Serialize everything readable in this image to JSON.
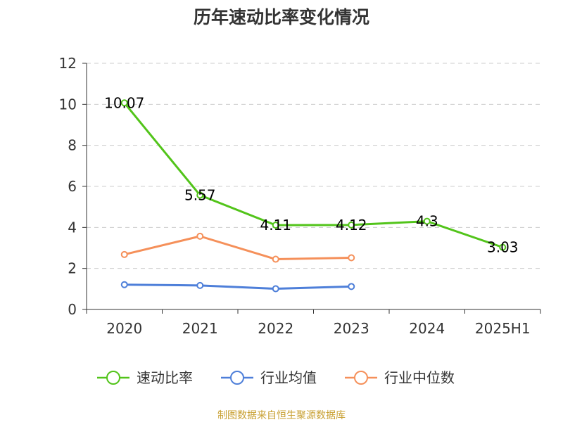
{
  "chart_data": {
    "type": "line",
    "title": "历年速动比率变化情况",
    "categories": [
      "2020",
      "2021",
      "2022",
      "2023",
      "2024",
      "2025H1"
    ],
    "ylim": [
      0,
      12
    ],
    "yticks": [
      0,
      2,
      4,
      6,
      8,
      10,
      12
    ],
    "grid": true,
    "legend_position": "bottom",
    "series": [
      {
        "name": "速动比率",
        "color": "#52c41a",
        "values": [
          10.07,
          5.57,
          4.11,
          4.12,
          4.3,
          3.03
        ],
        "labels": [
          "10.07",
          "5.57",
          "4.11",
          "4.12",
          "4.3",
          "3.03"
        ]
      },
      {
        "name": "行业均值",
        "color": "#4e7fd9",
        "values": [
          1.21,
          1.17,
          1.01,
          1.12,
          null,
          null
        ]
      },
      {
        "name": "行业中位数",
        "color": "#f5905a",
        "values": [
          2.68,
          3.57,
          2.45,
          2.52,
          null,
          null
        ]
      }
    ],
    "source": "制图数据来自恒生聚源数据库",
    "source_color": "#c8a032"
  }
}
